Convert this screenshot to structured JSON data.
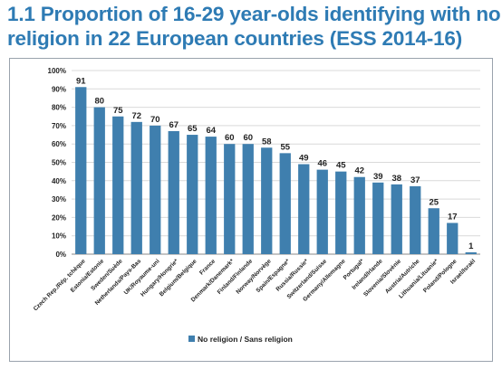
{
  "title_line1": "1.1  Proportion of 16-29 year-olds identifying with no",
  "title_line2": "religion in 22 European countries (ESS 2014-16)",
  "chart_data": {
    "type": "bar",
    "title": "1.1  Proportion of 16-29 year-olds identifying with no religion in 22 European countries (ESS 2014-16)",
    "xlabel": "",
    "ylabel": "",
    "ylim": [
      0,
      100
    ],
    "y_ticks": [
      "0%",
      "10%",
      "20%",
      "30%",
      "40%",
      "50%",
      "60%",
      "70%",
      "80%",
      "90%",
      "100%"
    ],
    "grid": true,
    "legend_position": "bottom-center",
    "bar_color": "#3f7fae",
    "categories": [
      "Czech Rep./Rép. tchèque",
      "Estonia/Estonie",
      "Sweden/Suède",
      "Netherlands/Pays-Bas",
      "UK/Royaume-uni",
      "Hungary/Hongrie*",
      "Belgium/Belgique",
      "France",
      "Denmark/Danemark*",
      "Finland/Finlande",
      "Norway/Norvège",
      "Spain/Espagne*",
      "Russia/Russie*",
      "Switzerland/Suisse",
      "Germany/Allemagne",
      "Portugal*",
      "Ireland/Irlande",
      "Slovenia/Slovénie",
      "Austria/Autriche",
      "Lithuania/Lituanie*",
      "Poland/Pologne",
      "Israel/Israël"
    ],
    "series": [
      {
        "name": "No religion / Sans religion",
        "values": [
          91,
          80,
          75,
          72,
          70,
          67,
          65,
          64,
          60,
          60,
          58,
          55,
          49,
          46,
          45,
          42,
          39,
          38,
          37,
          25,
          17,
          1
        ]
      }
    ]
  }
}
